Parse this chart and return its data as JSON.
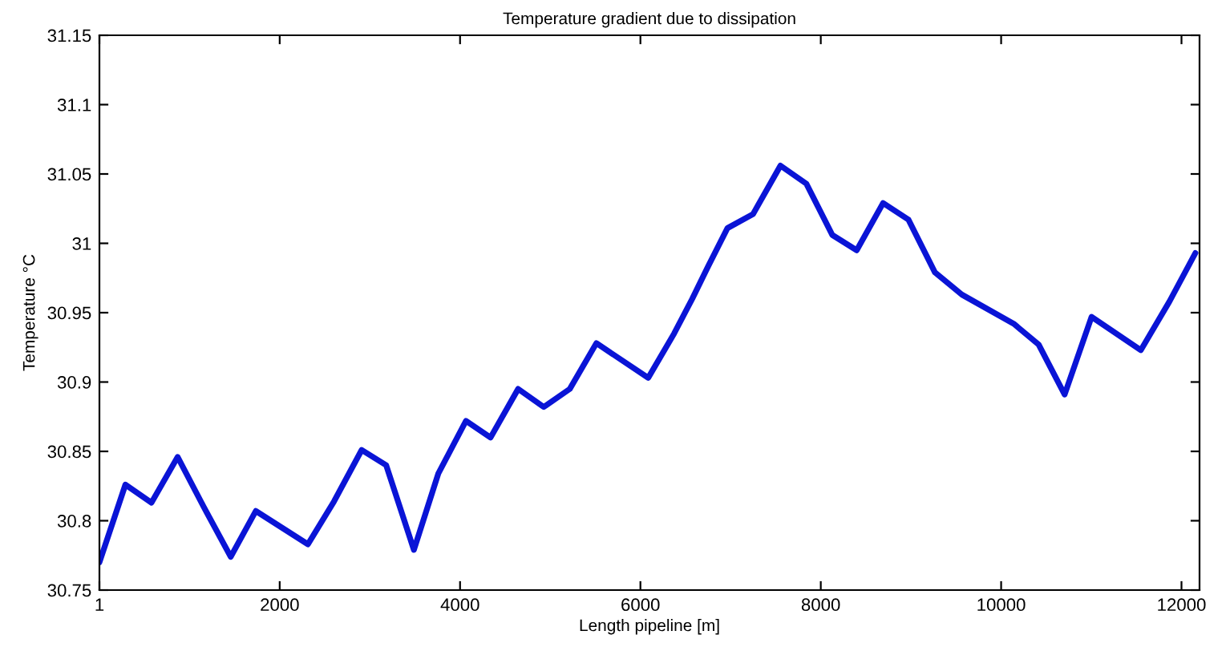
{
  "chart_data": {
    "type": "line",
    "title": "Temperature gradient due to dissipation",
    "xlabel": "Length pipeline [m]",
    "ylabel": "Temperature °C",
    "xlim": [
      1,
      12200
    ],
    "xticks": [
      1,
      2000,
      4000,
      6000,
      8000,
      10000,
      12000
    ],
    "ylim": [
      30.75,
      31.15
    ],
    "yticks": [
      30.75,
      30.8,
      30.85,
      30.9,
      30.95,
      31,
      31.05,
      31.1,
      31.15
    ],
    "marker": "none",
    "line_style": "solid",
    "series": [
      {
        "color": "#0a14d6",
        "x": [
          1,
          289,
          578,
          868,
          1157,
          1457,
          1735,
          2313,
          2603,
          2909,
          3181,
          3488,
          3759,
          4066,
          4338,
          4644,
          4928,
          5217,
          5512,
          6086,
          6374,
          6575,
          6748,
          6966,
          7248,
          7553,
          7840,
          8128,
          8398,
          8691,
          8973,
          9266,
          9565,
          10140,
          10416,
          10704,
          11003,
          11549,
          11866,
          12154
        ],
        "values": [
          30.77,
          30.826,
          30.813,
          30.846,
          30.81,
          30.774,
          30.807,
          30.783,
          30.814,
          30.851,
          30.84,
          30.779,
          30.834,
          30.872,
          30.86,
          30.895,
          30.882,
          30.895,
          30.928,
          30.903,
          30.935,
          30.96,
          30.983,
          31.011,
          31.021,
          31.056,
          31.043,
          31.006,
          30.995,
          31.029,
          31.017,
          30.979,
          30.963,
          30.942,
          30.927,
          30.891,
          30.947,
          30.923,
          30.958,
          30.993
        ]
      }
    ]
  }
}
